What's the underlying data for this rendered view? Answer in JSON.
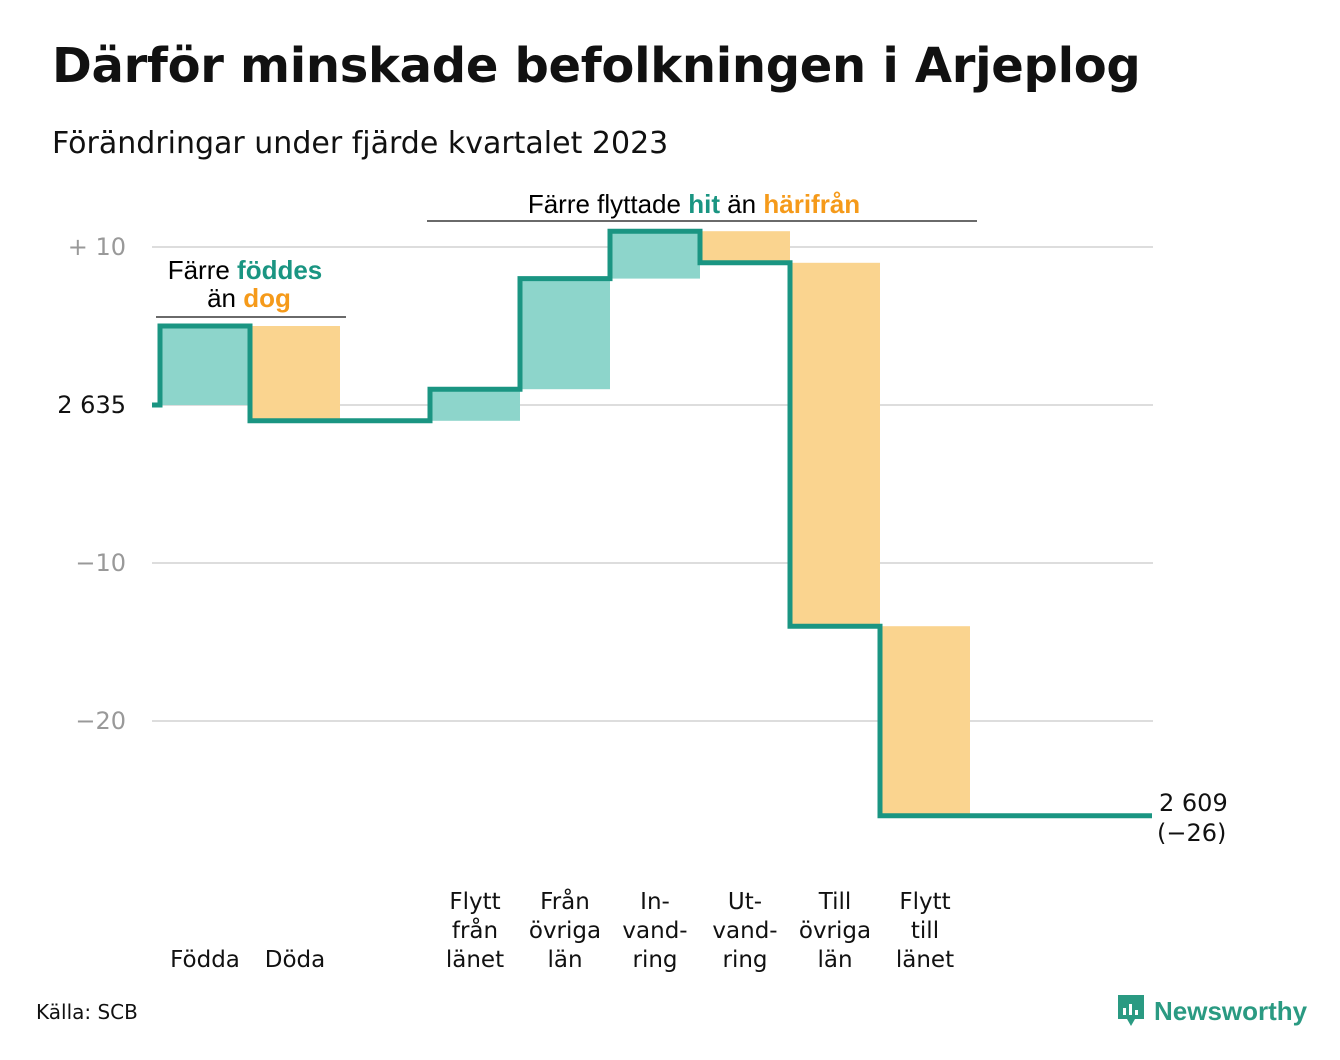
{
  "title": "Därför minskade befolkningen i Arjeplog",
  "subtitle": "Förändringar under fjärde kvartalet 2023",
  "source": "Källa: SCB",
  "brand": "Newsworthy",
  "colors": {
    "teal": "#1a9582",
    "teal_fill": "#8dd5cb",
    "orange_fill": "#fad48f",
    "orange_text": "#f59a1a",
    "grid": "#dddddd",
    "axis_text": "#999999"
  },
  "annotations": {
    "births_deaths": {
      "line1_prefix": "Färre ",
      "line1_highlight": "föddes",
      "line2_prefix": "än ",
      "line2_highlight": "dog"
    },
    "migration": {
      "prefix": "Färre flyttade ",
      "highlight_in": "hit",
      "middle": " än ",
      "highlight_out": "härifrån"
    }
  },
  "end_label": {
    "line1": "2 609",
    "line2": "(−26)"
  },
  "chart_data": {
    "type": "waterfall",
    "title": "Därför minskade befolkningen i Arjeplog",
    "subtitle": "Förändringar under fjärde kvartalet 2023",
    "start_value": 2635,
    "end_value": 2609,
    "total_change": -26,
    "y_ticks": [
      {
        "value": 10,
        "label": "+  10"
      },
      {
        "value": 0,
        "label": "2 635"
      },
      {
        "value": -10,
        "label": "−10"
      },
      {
        "value": -20,
        "label": "−20"
      }
    ],
    "ylim": [
      -27,
      11
    ],
    "steps": [
      {
        "label": [
          "Födda"
        ],
        "change": 5,
        "kind": "in",
        "gap_before": false
      },
      {
        "label": [
          "Döda"
        ],
        "change": -6,
        "kind": "out",
        "gap_before": false
      },
      {
        "label": [
          "Flytt",
          "från",
          "länet"
        ],
        "change": 2,
        "kind": "in",
        "gap_before": true
      },
      {
        "label": [
          "Från",
          "övriga",
          "län"
        ],
        "change": 7,
        "kind": "in",
        "gap_before": false
      },
      {
        "label": [
          "In-",
          "vand-",
          "ring"
        ],
        "change": 3,
        "kind": "in",
        "gap_before": false
      },
      {
        "label": [
          "Ut-",
          "vand-",
          "ring"
        ],
        "change": -2,
        "kind": "out",
        "gap_before": false
      },
      {
        "label": [
          "Till",
          "övriga",
          "län"
        ],
        "change": -23,
        "kind": "out",
        "gap_before": false
      },
      {
        "label": [
          "Flytt",
          "till",
          "länet"
        ],
        "change": -12,
        "kind": "out",
        "gap_before": false
      }
    ]
  }
}
